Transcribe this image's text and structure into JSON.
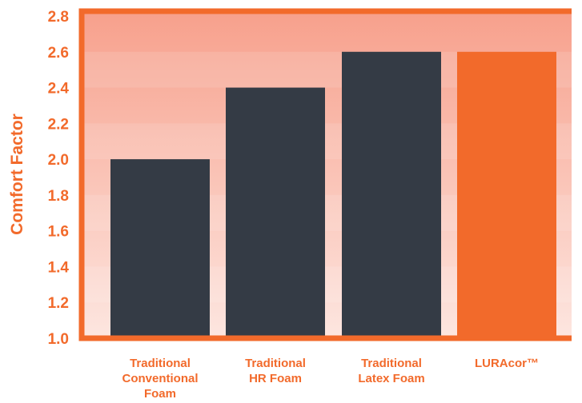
{
  "chart_data": {
    "type": "bar",
    "ylabel": "Comfort Factor",
    "xlabel": "",
    "ylim": [
      1.0,
      2.8
    ],
    "yticks": [
      "1.0",
      "1.2",
      "1.4",
      "1.6",
      "1.8",
      "2.0",
      "2.2",
      "2.4",
      "2.6",
      "2.8"
    ],
    "categories": [
      [
        "Traditional",
        "Conventional",
        "Foam"
      ],
      [
        "Traditional",
        "HR Foam"
      ],
      [
        "Traditional",
        "Latex Foam"
      ],
      [
        "LURAcor™"
      ]
    ],
    "values": [
      2.0,
      2.4,
      2.6,
      2.6
    ],
    "bar_colors": [
      "#343b45",
      "#343b45",
      "#343b45",
      "#f26a2b"
    ],
    "accent_color": "#f26a2b",
    "background_gradient": [
      "#f7a08c",
      "#fde6e0"
    ],
    "grid": false
  }
}
